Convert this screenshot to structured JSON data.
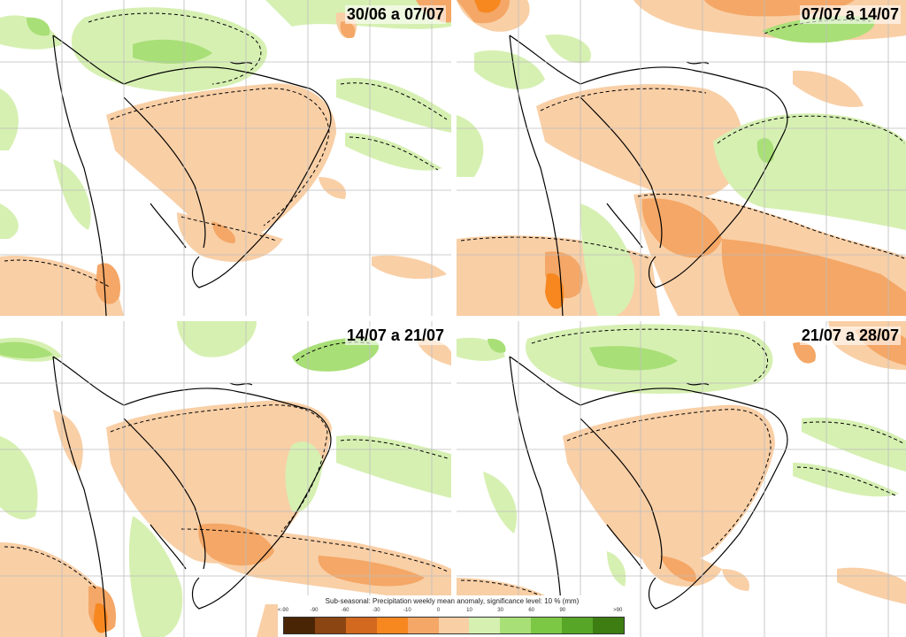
{
  "panels": [
    {
      "label": "30/06 a 07/07"
    },
    {
      "label": "07/07 a 14/07"
    },
    {
      "label": "14/07 a 21/07"
    },
    {
      "label": "21/07 a 28/07"
    }
  ],
  "legend": {
    "title": "Sub-seasonal: Precipitation weekly mean anomaly, significance level: 10 % (mm)",
    "ticks": [
      "<-90",
      "-90",
      "-60",
      "-30",
      "-10",
      "0",
      "10",
      "30",
      "60",
      "90",
      ">90"
    ],
    "colors": [
      "#4a2505",
      "#8b4513",
      "#d2691e",
      "#f7871f",
      "#f4a766",
      "#f9cfa6",
      "#d6f0b2",
      "#a9df77",
      "#7cc845",
      "#58a628",
      "#3d7d12"
    ]
  },
  "map_colors": {
    "dry_light": "#f9cfa6",
    "dry_medium": "#f4a766",
    "dry_strong": "#f7871f",
    "wet_light": "#d6f0b2",
    "wet_medium": "#a9df77",
    "grid": "#bdbdbd",
    "coast": "#000000"
  }
}
